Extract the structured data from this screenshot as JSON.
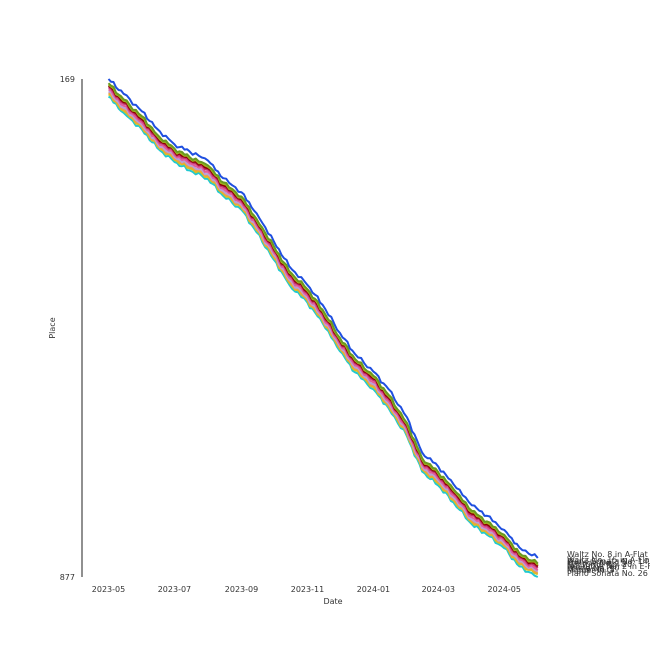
{
  "chart_data": {
    "type": "line",
    "xlabel": "Date",
    "ylabel": "Place",
    "y_reversed": true,
    "ylim": [
      169,
      877
    ],
    "xlim": [
      "2023-04-25",
      "2024-06-30"
    ],
    "y_ticks": [
      "169",
      "877"
    ],
    "x_ticks": [
      {
        "date": "2023-05-01",
        "label": "2023-05"
      },
      {
        "date": "2023-07-01",
        "label": "2023-07"
      },
      {
        "date": "2023-09-01",
        "label": "2023-09"
      },
      {
        "date": "2023-11-01",
        "label": "2023-11"
      },
      {
        "date": "2024-01-01",
        "label": "2024-01"
      },
      {
        "date": "2024-03-01",
        "label": "2024-03"
      },
      {
        "date": "2024-05-01",
        "label": "2024-05"
      }
    ],
    "grid": false,
    "legend": "labels at line ends (right)",
    "x": [
      "2023-05-01",
      "2023-05-15",
      "2023-06-01",
      "2023-06-15",
      "2023-07-01",
      "2023-07-15",
      "2023-08-01",
      "2023-08-15",
      "2023-09-01",
      "2023-09-15",
      "2023-10-01",
      "2023-10-15",
      "2023-11-01",
      "2023-11-15",
      "2023-12-01",
      "2023-12-15",
      "2024-01-01",
      "2024-01-15",
      "2024-02-01",
      "2024-02-15",
      "2024-03-01",
      "2024-03-15",
      "2024-04-01",
      "2024-04-15",
      "2024-05-01",
      "2024-05-15",
      "2024-06-01"
    ],
    "series": [
      {
        "name": "Waltz No. 8 in A-Flat",
        "color": "#1f4fe0",
        "values": [
          169,
          190,
          215,
          240,
          262,
          272,
          285,
          310,
          330,
          360,
          400,
          435,
          462,
          490,
          530,
          560,
          585,
          610,
          650,
          700,
          720,
          745,
          775,
          790,
          810,
          835,
          850
        ]
      },
      {
        "name": "Waltz No. 15 in A-Flat",
        "color": "#6a9a1f",
        "values": [
          175,
          198,
          222,
          248,
          268,
          280,
          292,
          316,
          336,
          368,
          407,
          442,
          468,
          497,
          537,
          567,
          591,
          618,
          658,
          708,
          728,
          752,
          783,
          798,
          817,
          843,
          858
        ]
      },
      {
        "name": "Piano Sonata No. 14",
        "color": "#a0b020",
        "values": [
          177,
          200,
          224,
          250,
          270,
          282,
          294,
          318,
          338,
          370,
          409,
          444,
          470,
          499,
          539,
          569,
          593,
          620,
          660,
          710,
          730,
          754,
          785,
          800,
          819,
          845,
          860
        ]
      },
      {
        "name": "Prelude No. 15",
        "color": "#8b0000",
        "values": [
          179,
          202,
          226,
          252,
          272,
          284,
          296,
          320,
          340,
          372,
          411,
          446,
          472,
          501,
          541,
          571,
          595,
          622,
          662,
          712,
          732,
          756,
          787,
          802,
          821,
          847,
          862
        ]
      },
      {
        "name": "Nocturne No. 20",
        "color": "#c0306f",
        "values": [
          181,
          204,
          228,
          254,
          274,
          286,
          298,
          322,
          342,
          374,
          413,
          448,
          474,
          503,
          543,
          573,
          597,
          624,
          664,
          714,
          734,
          758,
          789,
          804,
          823,
          849,
          864
        ]
      },
      {
        "name": "Nocturne No. 2 in E-Flat",
        "color": "#e45a9a",
        "values": [
          184,
          207,
          231,
          257,
          277,
          289,
          301,
          325,
          345,
          377,
          416,
          451,
          477,
          506,
          546,
          576,
          600,
          627,
          667,
          717,
          737,
          761,
          792,
          807,
          826,
          852,
          867
        ]
      },
      {
        "name": "Étude Op. 10",
        "color": "#b8a0d8",
        "values": [
          187,
          210,
          234,
          260,
          280,
          292,
          304,
          328,
          348,
          380,
          419,
          454,
          480,
          509,
          549,
          579,
          603,
          630,
          670,
          720,
          740,
          764,
          795,
          810,
          829,
          855,
          869
        ]
      },
      {
        "name": "Fugue No. 3",
        "color": "#f0a040",
        "values": [
          189,
          212,
          236,
          262,
          282,
          294,
          306,
          330,
          350,
          382,
          421,
          456,
          482,
          511,
          551,
          581,
          605,
          632,
          672,
          722,
          742,
          766,
          797,
          812,
          831,
          857,
          871
        ]
      },
      {
        "name": "Minuet in G",
        "color": "#d8c020",
        "values": [
          191,
          214,
          238,
          264,
          284,
          296,
          308,
          332,
          352,
          384,
          423,
          458,
          484,
          513,
          553,
          583,
          607,
          634,
          674,
          724,
          744,
          768,
          799,
          814,
          833,
          859,
          873
        ]
      },
      {
        "name": "Piano Sonata No. 26",
        "color": "#20c8d0",
        "values": [
          194,
          217,
          241,
          267,
          287,
          299,
          311,
          335,
          355,
          387,
          426,
          461,
          487,
          516,
          556,
          586,
          610,
          637,
          677,
          727,
          747,
          771,
          802,
          817,
          836,
          862,
          877
        ]
      }
    ]
  }
}
